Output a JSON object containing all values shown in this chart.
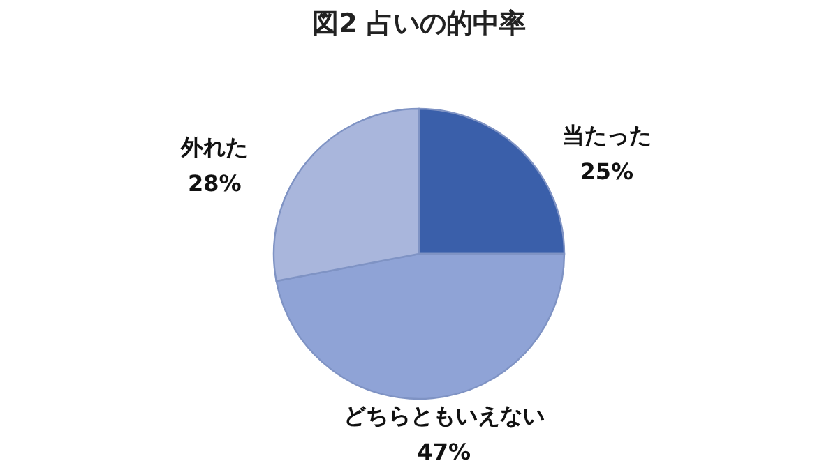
{
  "chart_data": {
    "type": "pie",
    "title": "図2 占いの的中率",
    "categories": [
      "当たった",
      "どちらともいえない",
      "外れた"
    ],
    "values": [
      25,
      47,
      28
    ],
    "colors": [
      "#3a5faa",
      "#8fa3d6",
      "#a9b6dc"
    ],
    "value_labels": [
      "25%",
      "47%",
      "28%"
    ],
    "legend": false
  }
}
